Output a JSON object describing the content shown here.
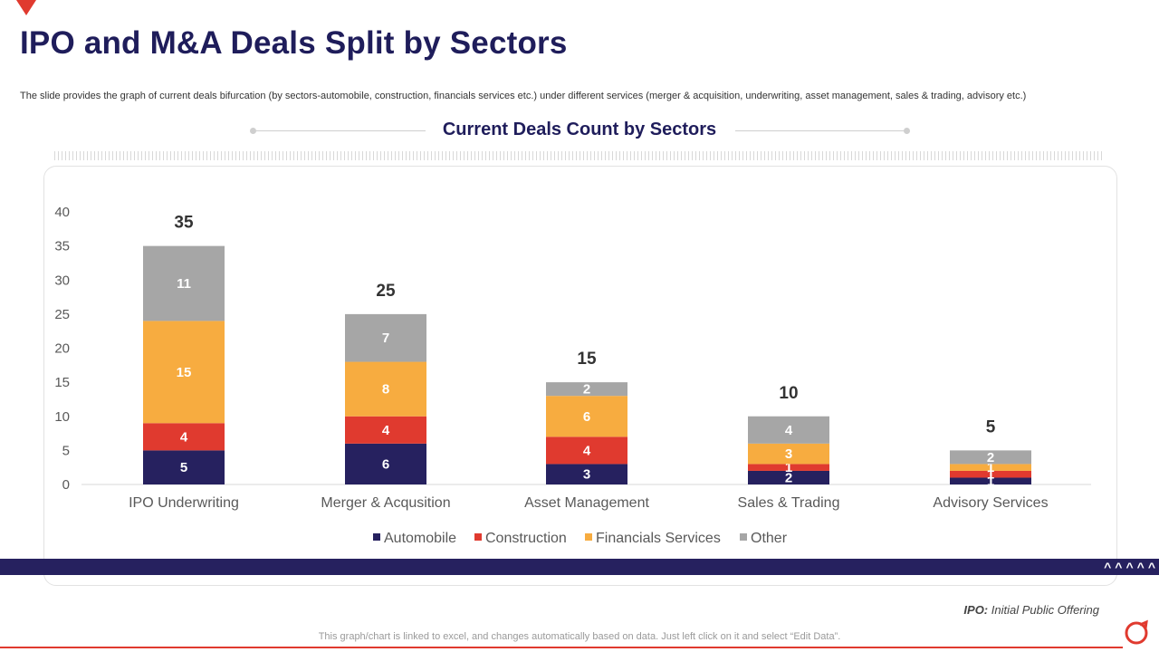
{
  "page": {
    "title": "IPO and M&A Deals Split by Sectors",
    "subtitle": "The slide provides the graph of current deals bifurcation (by sectors-automobile, construction, financials services etc.) under different services (merger & acquisition, underwriting, asset management, sales & trading, advisory etc.)",
    "footnote_abbr": "IPO:",
    "footnote_text": "Initial Public Offering",
    "bottom_note": "This graph/chart is linked to excel,  and changes automatically based on data. Just left click on it and select “Edit Data”.",
    "chevrons": [
      "^",
      "^",
      "^",
      "^",
      "^"
    ]
  },
  "colors": {
    "title": "#1f1d5b",
    "automobile": "#26215f",
    "construction": "#e03a2f",
    "financials": "#f7ac40",
    "other": "#a6a6a6",
    "accent_red": "#e03a2f"
  },
  "chart_data": {
    "type": "bar",
    "stacked": true,
    "title": "Current Deals Count by Sectors",
    "categories": [
      "IPO Underwriting",
      "Merger & Acqusition",
      "Asset Management",
      "Sales & Trading",
      "Advisory Services"
    ],
    "series": [
      {
        "name": "Automobile",
        "color": "#26215f",
        "values": [
          5,
          6,
          3,
          2,
          1
        ]
      },
      {
        "name": "Construction",
        "color": "#e03a2f",
        "values": [
          4,
          4,
          4,
          1,
          1
        ]
      },
      {
        "name": "Financials Services",
        "color": "#f7ac40",
        "values": [
          15,
          8,
          6,
          3,
          1
        ]
      },
      {
        "name": "Other",
        "color": "#a6a6a6",
        "values": [
          11,
          7,
          2,
          4,
          2
        ]
      }
    ],
    "totals": [
      35,
      25,
      15,
      10,
      5
    ],
    "yticks": [
      0,
      5,
      10,
      15,
      20,
      25,
      30,
      35,
      40
    ],
    "ylim": [
      0,
      40
    ],
    "xlabel": "",
    "ylabel": "",
    "legend_position": "bottom",
    "grid": false
  }
}
